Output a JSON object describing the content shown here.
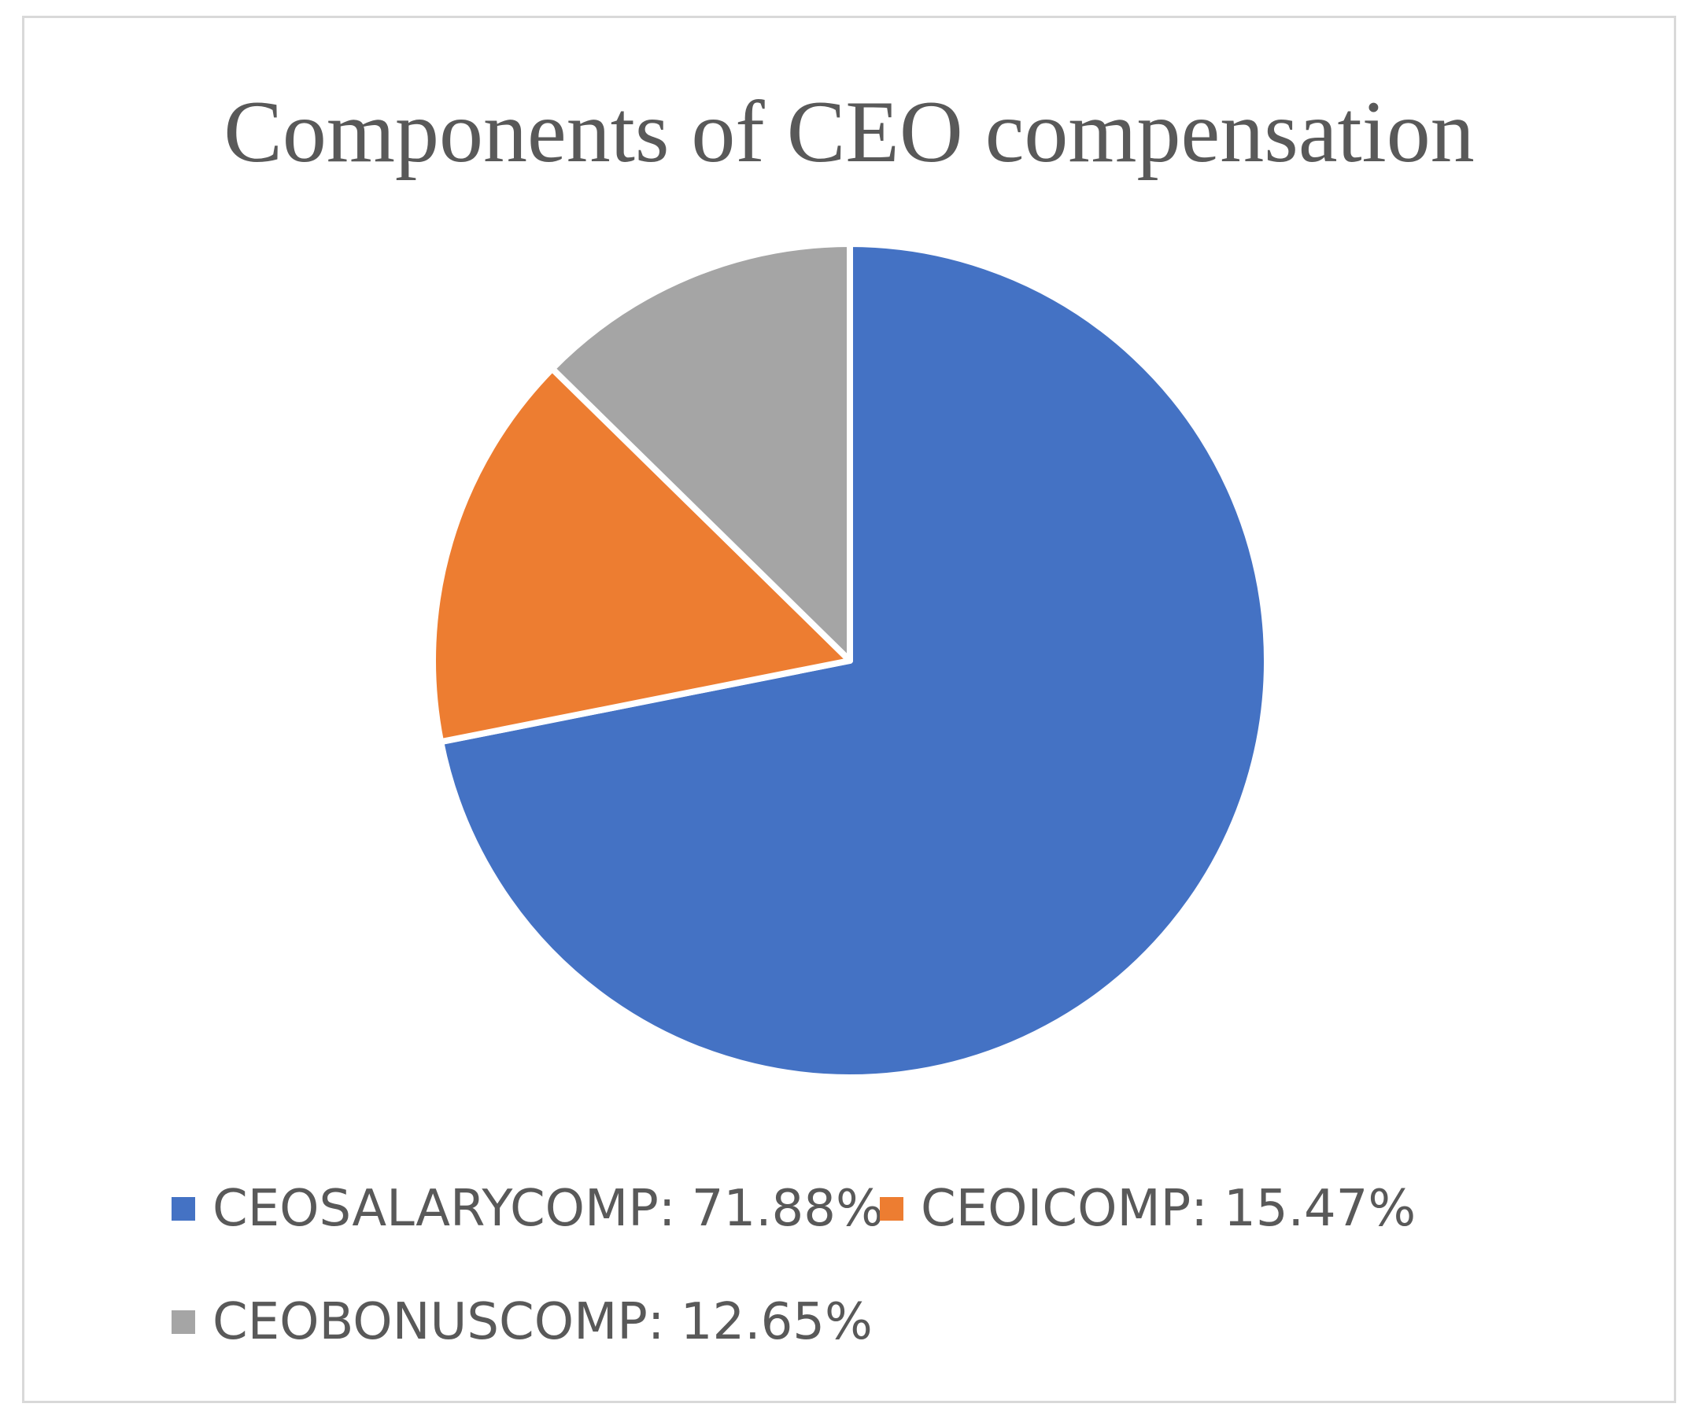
{
  "chart_data": {
    "type": "pie",
    "title": "Components of CEO compensation",
    "categories": [
      "CEOSALARYCOMP",
      "CEOICOMP",
      "CEOBONUSCOMP"
    ],
    "values": [
      71.88,
      15.47,
      12.65
    ],
    "unit": "%",
    "colors": [
      "#4472c4",
      "#ed7d31",
      "#a5a5a5"
    ],
    "legend": {
      "position": "bottom",
      "entries": [
        {
          "label": "CEOSALARYCOMP: 71.88%",
          "color": "#4472c4"
        },
        {
          "label": "CEOICOMP: 15.47%",
          "color": "#ed7d31"
        },
        {
          "label": "CEOBONUSCOMP: 12.65%",
          "color": "#a5a5a5"
        }
      ]
    },
    "start_angle": "12 o'clock",
    "direction": "clockwise"
  }
}
